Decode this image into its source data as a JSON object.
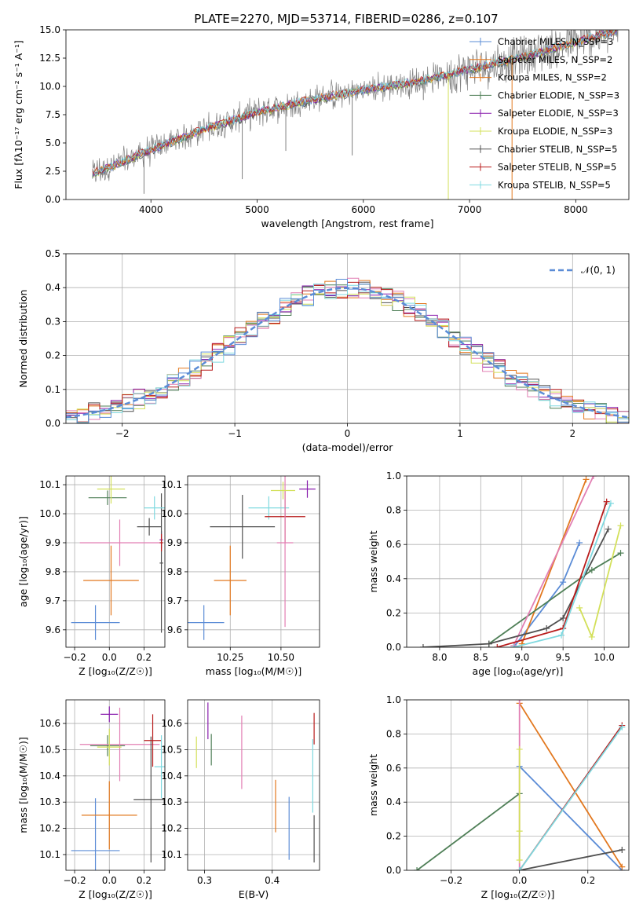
{
  "figure_title": "PLATE=2270, MJD=53714, FIBERID=0286, z=0.107",
  "colors": {
    "models": [
      "#5b8cd6",
      "#e2781f",
      "#4f7f57",
      "#8a1fae",
      "#e27fb3",
      "#d3e05a",
      "#505050",
      "#b81c1c",
      "#7fd9e0"
    ],
    "data_gray": "#808080",
    "normal_curve": "#5b8cd6"
  },
  "chart_data": [
    {
      "id": "spectrum",
      "type": "line",
      "title": "PLATE=2270, MJD=53714, FIBERID=0286, z=0.107",
      "xlabel": "wavelength [Angstrom, rest frame]",
      "ylabel": "Flux [fλ10⁻¹⁷ erg cm⁻² s⁻¹ A⁻¹]",
      "xlim": [
        3200,
        8500
      ],
      "ylim": [
        0,
        15
      ],
      "xticks": [
        4000,
        5000,
        6000,
        7000,
        8000
      ],
      "yticks": [
        0.0,
        2.5,
        5.0,
        7.5,
        10.0,
        12.5,
        15.0
      ],
      "grid": false,
      "legend_position": "right",
      "legend": [
        {
          "label": "Chabrier MILES, N_SSP=3",
          "color_index": 0
        },
        {
          "label": "Salpeter MILES, N_SSP=2",
          "color_index": 1
        },
        {
          "label": "Kroupa MILES, N_SSP=2",
          "color_index": 1
        },
        {
          "label": "Chabrier ELODIE, N_SSP=3",
          "color_index": 2
        },
        {
          "label": "Salpeter ELODIE, N_SSP=3",
          "color_index": 3
        },
        {
          "label": "Kroupa ELODIE, N_SSP=3",
          "color_index": 5
        },
        {
          "label": "Chabrier STELIB, N_SSP=5",
          "color_index": 6
        },
        {
          "label": "Salpeter STELIB, N_SSP=5",
          "color_index": 7
        },
        {
          "label": "Kroupa STELIB, N_SSP=5",
          "color_index": 8
        }
      ],
      "data_trend": {
        "x": [
          3450,
          3700,
          4000,
          4500,
          5000,
          5500,
          6000,
          6500,
          7000,
          7500,
          8000,
          8400
        ],
        "y": [
          2.3,
          3.2,
          4.4,
          6.2,
          7.7,
          8.8,
          9.7,
          10.4,
          11.5,
          12.6,
          13.9,
          15.0
        ]
      }
    },
    {
      "id": "residuals",
      "type": "histogram",
      "xlabel": "(data-model)/error",
      "ylabel": "Normed distribution",
      "xlim": [
        -2.5,
        2.5
      ],
      "ylim": [
        0,
        0.5
      ],
      "xticks": [
        -2,
        -1,
        0,
        1,
        2
      ],
      "yticks": [
        0.0,
        0.1,
        0.2,
        0.3,
        0.4,
        0.5
      ],
      "grid": true,
      "legend_position": "top-right",
      "legend": [
        {
          "label": "𝒩(0, 1)",
          "color_index": 0
        }
      ],
      "bin_width": 0.1,
      "normal": {
        "mean": 0,
        "sigma": 1
      }
    },
    {
      "id": "age_vs_Z",
      "type": "scatter",
      "xlabel": "Z [log₁₀(Z/Z☉)]",
      "ylabel": "age  [log₁₀(age/yr)]",
      "xlim": [
        -0.25,
        0.32
      ],
      "ylim": [
        9.54,
        10.13
      ],
      "xticks": [
        -0.2,
        0.0,
        0.2
      ],
      "yticks": [
        9.6,
        9.7,
        9.8,
        9.9,
        10.0,
        10.1
      ],
      "grid": true,
      "points": [
        {
          "c": 0,
          "x": -0.08,
          "xerr": 0.14,
          "y": 9.625,
          "yerr": 0.06
        },
        {
          "c": 1,
          "x": 0.01,
          "xerr": 0.16,
          "y": 9.77,
          "yerr": 0.12
        },
        {
          "c": 2,
          "x": -0.01,
          "xerr": 0.11,
          "y": 10.055,
          "yerr": 0.025
        },
        {
          "c": 3,
          "x": 0.3,
          "xerr": 0.01,
          "y": 9.91,
          "yerr": 0.03
        },
        {
          "c": 4,
          "x": 0.06,
          "xerr": 0.23,
          "y": 9.9,
          "yerr": 0.08
        },
        {
          "c": 5,
          "x": 0.01,
          "xerr": 0.08,
          "y": 10.085,
          "yerr": 0.05
        },
        {
          "c": 6,
          "x": 0.3,
          "xerr": 0.01,
          "y": 9.83,
          "yerr": 0.24
        },
        {
          "c": 7,
          "x": 0.3,
          "xerr": 0.01,
          "y": 9.9,
          "yerr": 0.03
        },
        {
          "c": 8,
          "x": 0.26,
          "xerr": 0.06,
          "y": 10.02,
          "yerr": 0.04
        },
        {
          "c": 6,
          "x": 0.23,
          "xerr": 0.07,
          "y": 9.955,
          "yerr": 0.03
        }
      ]
    },
    {
      "id": "age_vs_mass",
      "type": "scatter",
      "xlabel": "mass [log₁₀(M/M☉)]",
      "ylabel": "",
      "xlim": [
        10.04,
        10.69
      ],
      "ylim": [
        9.54,
        10.13
      ],
      "xticks": [
        10.25,
        10.5
      ],
      "xticklabels": [
        "10.25",
        "10.50"
      ],
      "yticks": [
        9.6,
        9.7,
        9.8,
        9.9,
        10.0,
        10.1
      ],
      "grid": true,
      "points": [
        {
          "c": 0,
          "x": 10.12,
          "xerr": 0.1,
          "y": 9.625,
          "yerr": 0.06
        },
        {
          "c": 1,
          "x": 10.25,
          "xerr": 0.08,
          "y": 9.77,
          "yerr": 0.12
        },
        {
          "c": 6,
          "x": 10.31,
          "xerr": 0.16,
          "y": 9.955,
          "yerr": 0.11
        },
        {
          "c": 8,
          "x": 10.44,
          "xerr": 0.1,
          "y": 10.02,
          "yerr": 0.04
        },
        {
          "c": 7,
          "x": 10.52,
          "xerr": 0.1,
          "y": 9.99,
          "yerr": 0.09
        },
        {
          "c": 4,
          "x": 10.52,
          "xerr": 0.04,
          "y": 9.9,
          "yerr": 0.29
        },
        {
          "c": 5,
          "x": 10.51,
          "xerr": 0.06,
          "y": 10.08,
          "yerr": 0.03
        },
        {
          "c": 3,
          "x": 10.63,
          "xerr": 0.04,
          "y": 10.085,
          "yerr": 0.03
        }
      ]
    },
    {
      "id": "weight_vs_age",
      "type": "line",
      "xlabel": "age  [log₁₀(age/yr)]",
      "ylabel": "mass weight",
      "xlim": [
        7.6,
        10.3
      ],
      "ylim": [
        0,
        1
      ],
      "xticks": [
        8.0,
        8.5,
        9.0,
        9.5,
        10.0
      ],
      "yticks": [
        0.0,
        0.2,
        0.4,
        0.6,
        0.8,
        1.0
      ],
      "grid": true,
      "series": [
        {
          "c": 0,
          "x": [
            8.9,
            9.5,
            9.7
          ],
          "y": [
            0.0,
            0.38,
            0.61
          ]
        },
        {
          "c": 1,
          "x": [
            9.0,
            9.78
          ],
          "y": [
            0.02,
            0.98
          ]
        },
        {
          "c": 2,
          "x": [
            8.6,
            9.85,
            10.2
          ],
          "y": [
            0.02,
            0.45,
            0.55
          ]
        },
        {
          "c": 4,
          "x": [
            8.9,
            9.87
          ],
          "y": [
            0.01,
            1.0
          ]
        },
        {
          "c": 5,
          "x": [
            9.7,
            9.85,
            10.2
          ],
          "y": [
            0.23,
            0.06,
            0.71
          ]
        },
        {
          "c": 6,
          "x": [
            7.8,
            8.6,
            9.3,
            9.5,
            10.05
          ],
          "y": [
            0.0,
            0.02,
            0.11,
            0.17,
            0.69
          ]
        },
        {
          "c": 7,
          "x": [
            8.7,
            9.5,
            10.03
          ],
          "y": [
            0.0,
            0.11,
            0.85
          ]
        },
        {
          "c": 8,
          "x": [
            8.9,
            9.48,
            10.08
          ],
          "y": [
            0.0,
            0.07,
            0.84
          ]
        }
      ]
    },
    {
      "id": "mass_vs_Z",
      "type": "scatter",
      "xlabel": "Z [log₁₀(Z/Z☉)]",
      "ylabel": "mass [log₁₀(M/M☉)]",
      "xlim": [
        -0.25,
        0.32
      ],
      "ylim": [
        10.04,
        10.69
      ],
      "xticks": [
        -0.2,
        0.0,
        0.2
      ],
      "yticks": [
        10.1,
        10.2,
        10.3,
        10.4,
        10.5,
        10.6
      ],
      "grid": true,
      "points": [
        {
          "c": 0,
          "x": -0.08,
          "xerr": 0.14,
          "y": 10.115,
          "yerr": 0.2
        },
        {
          "c": 1,
          "x": 0.0,
          "xerr": 0.16,
          "y": 10.25,
          "yerr": 0.13
        },
        {
          "c": 2,
          "x": -0.01,
          "xerr": 0.1,
          "y": 10.515,
          "yerr": 0.04
        },
        {
          "c": 3,
          "x": 0.0,
          "xerr": 0.05,
          "y": 10.635,
          "yerr": 0.03
        },
        {
          "c": 4,
          "x": 0.06,
          "xerr": 0.23,
          "y": 10.52,
          "yerr": 0.14
        },
        {
          "c": 5,
          "x": 0.0,
          "xerr": 0.07,
          "y": 10.51,
          "yerr": 0.07
        },
        {
          "c": 6,
          "x": 0.24,
          "xerr": 0.1,
          "y": 10.31,
          "yerr": 0.24
        },
        {
          "c": 7,
          "x": 0.25,
          "xerr": 0.05,
          "y": 10.535,
          "yerr": 0.1
        },
        {
          "c": 8,
          "x": 0.3,
          "xerr": 0.04,
          "y": 10.435,
          "yerr": 0.12
        }
      ]
    },
    {
      "id": "mass_vs_ebv",
      "type": "scatter",
      "xlabel": "E(B-V)",
      "ylabel": "",
      "xlim": [
        0.275,
        0.47
      ],
      "ylim": [
        10.04,
        10.69
      ],
      "xticks": [
        0.3,
        0.4
      ],
      "yticks": [
        10.1,
        10.2,
        10.3,
        10.4,
        10.5,
        10.6
      ],
      "grid": true,
      "points": [
        {
          "c": 0,
          "x": 0.425,
          "xerr": 0,
          "y": 10.2,
          "yerr": 0.12
        },
        {
          "c": 1,
          "x": 0.405,
          "xerr": 0,
          "y": 10.285,
          "yerr": 0.1
        },
        {
          "c": 2,
          "x": 0.31,
          "xerr": 0,
          "y": 10.5,
          "yerr": 0.06
        },
        {
          "c": 3,
          "x": 0.305,
          "xerr": 0,
          "y": 10.61,
          "yerr": 0.07
        },
        {
          "c": 4,
          "x": 0.355,
          "xerr": 0,
          "y": 10.49,
          "yerr": 0.14
        },
        {
          "c": 5,
          "x": 0.288,
          "xerr": 0,
          "y": 10.49,
          "yerr": 0.06
        },
        {
          "c": 6,
          "x": 0.462,
          "xerr": 0,
          "y": 10.16,
          "yerr": 0.09
        },
        {
          "c": 7,
          "x": 0.462,
          "xerr": 0,
          "y": 10.58,
          "yerr": 0.06
        },
        {
          "c": 8,
          "x": 0.46,
          "xerr": 0,
          "y": 10.4,
          "yerr": 0.14
        }
      ]
    },
    {
      "id": "weight_vs_Z",
      "type": "line",
      "xlabel": "Z [log₁₀(Z/Z☉)]",
      "ylabel": "mass weight",
      "xlim": [
        -0.33,
        0.32
      ],
      "ylim": [
        0,
        1
      ],
      "xticks": [
        -0.2,
        0.0,
        0.2
      ],
      "yticks": [
        0.0,
        0.2,
        0.4,
        0.6,
        0.8,
        1.0
      ],
      "grid": true,
      "series": [
        {
          "c": 0,
          "x": [
            0.0,
            0.3
          ],
          "y": [
            0.61,
            0.0
          ]
        },
        {
          "c": 1,
          "x": [
            0.0,
            0.3
          ],
          "y": [
            0.98,
            0.02
          ]
        },
        {
          "c": 2,
          "x": [
            -0.3,
            0.0
          ],
          "y": [
            0.0,
            0.45
          ]
        },
        {
          "c": 4,
          "x": [
            0.0,
            0.0
          ],
          "y": [
            0.0,
            1.0
          ]
        },
        {
          "c": 5,
          "x": [
            0.0,
            0.0,
            0.0
          ],
          "y": [
            0.23,
            0.06,
            0.71
          ]
        },
        {
          "c": 6,
          "x": [
            0.0,
            0.3
          ],
          "y": [
            0.0,
            0.12
          ]
        },
        {
          "c": 7,
          "x": [
            0.0,
            0.3
          ],
          "y": [
            0.0,
            0.85
          ]
        },
        {
          "c": 8,
          "x": [
            0.0,
            0.3
          ],
          "y": [
            0.0,
            0.84
          ]
        }
      ]
    }
  ]
}
